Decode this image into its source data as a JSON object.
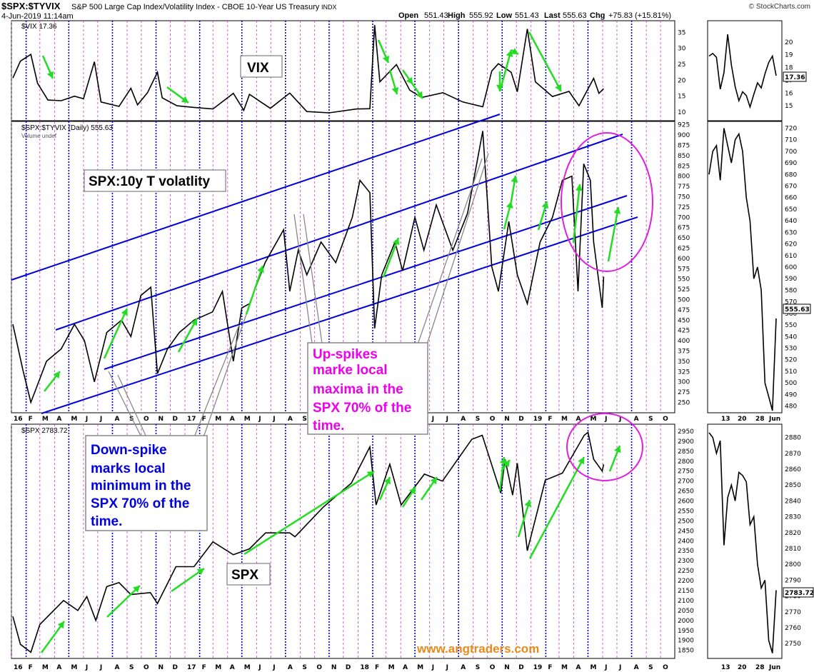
{
  "header": {
    "symbol": "$SPX:$TYVIX",
    "description": "S&P 500 Large Cap Index/Volatility Index - CBOE 10-Year US Treasury",
    "exchange": "INDX",
    "date": "4-Jun-2019 11:14am",
    "open_label": "Open",
    "open": "551.43",
    "high_label": "High",
    "high": "555.92",
    "low_label": "Low",
    "low": "551.43",
    "last_label": "Last",
    "last": "555.63",
    "chg_label": "Chg",
    "chg": "+75.83 (+15.81%)",
    "watermark": "© StockCharts.com"
  },
  "panels": {
    "vix": {
      "legend": "$VIX 17.36",
      "last_value": "17.36"
    },
    "ratio": {
      "legend": "$SPX:$TYVIX (Daily) 555.63",
      "volume_legend": "Volume undef",
      "last_value": "555.63"
    },
    "spx": {
      "legend": "$SPX 2783.72",
      "last_value": "2783.72"
    }
  },
  "annotations": {
    "vix_label": "VIX",
    "ratio_label": "SPX:10y T volatlity",
    "spx_label": "SPX",
    "up_spikes": [
      "Up-spikes",
      "marke local",
      "maxima in the",
      "SPX 70% of the",
      "time."
    ],
    "down_spike": [
      "Down-spike",
      "marks local",
      "minimum in the",
      "SPX 70% of the",
      "time."
    ],
    "site": "www.angtraders.com"
  },
  "colors": {
    "price": "#000000",
    "channel": "#0000dd",
    "arrow": "#22dd22",
    "magenta": "#e020e0",
    "grid_blue": "#0000ee",
    "grid_magenta": "#cc33cc",
    "up_text": "#ee00ee",
    "down_text": "#0000dd",
    "site": "#e88a1a"
  },
  "chart_data": [
    {
      "type": "line",
      "name_hint": "main-vix",
      "xlabel": "",
      "ylabel": "",
      "ylim": [
        8,
        38
      ],
      "y_ticks": [
        10,
        15,
        20,
        25,
        30,
        35
      ],
      "x_ticks": [
        "16",
        "F",
        "M",
        "A",
        "M",
        "J",
        "J",
        "A",
        "S",
        "O",
        "N",
        "D",
        "17",
        "F",
        "M",
        "A",
        "M",
        "J",
        "J",
        "A",
        "S",
        "O",
        "N",
        "D",
        "18",
        "F",
        "M",
        "A",
        "M",
        "J",
        "J",
        "A",
        "S",
        "O",
        "N",
        "D",
        "19",
        "F",
        "M",
        "A",
        "M",
        "J",
        "J",
        "A",
        "S",
        "O"
      ],
      "x_range": [
        "2016-01-01",
        "2019-10-31"
      ],
      "series": [
        {
          "values": [
            [
              "2016-01-04",
              20.7
            ],
            [
              "2016-01-20",
              26.0
            ],
            [
              "2016-02-11",
              28.1
            ],
            [
              "2016-02-25",
              19.1
            ],
            [
              "2016-03-18",
              13.8
            ],
            [
              "2016-04-15",
              13.6
            ],
            [
              "2016-05-13",
              15.0
            ],
            [
              "2016-06-01",
              14.2
            ],
            [
              "2016-06-24",
              25.8
            ],
            [
              "2016-07-08",
              13.2
            ],
            [
              "2016-08-15",
              11.8
            ],
            [
              "2016-09-09",
              17.5
            ],
            [
              "2016-09-23",
              12.3
            ],
            [
              "2016-10-14",
              16.1
            ],
            [
              "2016-11-04",
              22.5
            ],
            [
              "2016-11-14",
              14.5
            ],
            [
              "2016-12-15",
              12.0
            ],
            [
              "2017-01-20",
              11.5
            ],
            [
              "2017-03-01",
              11.0
            ],
            [
              "2017-04-13",
              15.9
            ],
            [
              "2017-05-05",
              10.6
            ],
            [
              "2017-05-17",
              15.6
            ],
            [
              "2017-06-30",
              11.2
            ],
            [
              "2017-08-10",
              16.0
            ],
            [
              "2017-09-15",
              10.2
            ],
            [
              "2017-11-01",
              9.8
            ],
            [
              "2017-12-29",
              11.0
            ],
            [
              "2018-01-26",
              11.1
            ],
            [
              "2018-02-05",
              37.3
            ],
            [
              "2018-02-16",
              19.5
            ],
            [
              "2018-03-23",
              24.9
            ],
            [
              "2018-04-20",
              16.9
            ],
            [
              "2018-05-15",
              14.6
            ],
            [
              "2018-06-29",
              16.1
            ],
            [
              "2018-08-10",
              13.2
            ],
            [
              "2018-09-21",
              11.7
            ],
            [
              "2018-10-10",
              22.9
            ],
            [
              "2018-10-24",
              25.2
            ],
            [
              "2018-11-20",
              22.5
            ],
            [
              "2018-12-03",
              16.4
            ],
            [
              "2018-12-24",
              36.1
            ],
            [
              "2019-01-10",
              19.5
            ],
            [
              "2019-02-15",
              14.9
            ],
            [
              "2019-03-22",
              16.5
            ],
            [
              "2019-04-12",
              12.0
            ],
            [
              "2019-05-13",
              20.6
            ],
            [
              "2019-05-24",
              15.9
            ],
            [
              "2019-06-03",
              17.36
            ]
          ]
        }
      ]
    },
    {
      "type": "line",
      "name_hint": "main-ratio",
      "xlabel": "",
      "ylabel": "",
      "ylim": [
        230,
        928
      ],
      "y_ticks": [
        250,
        275,
        300,
        325,
        350,
        375,
        400,
        425,
        450,
        475,
        500,
        525,
        550,
        575,
        600,
        625,
        650,
        675,
        700,
        725,
        750,
        775,
        800,
        825,
        850,
        875,
        900,
        925
      ],
      "series": [
        {
          "values": [
            [
              "2016-01-04",
              440
            ],
            [
              "2016-01-25",
              330
            ],
            [
              "2016-02-11",
              250
            ],
            [
              "2016-03-15",
              350
            ],
            [
              "2016-04-15",
              380
            ],
            [
              "2016-05-13",
              440
            ],
            [
              "2016-06-03",
              400
            ],
            [
              "2016-06-24",
              300
            ],
            [
              "2016-07-20",
              420
            ],
            [
              "2016-08-20",
              450
            ],
            [
              "2016-09-09",
              410
            ],
            [
              "2016-09-30",
              510
            ],
            [
              "2016-10-21",
              530
            ],
            [
              "2016-11-04",
              320
            ],
            [
              "2016-11-25",
              380
            ],
            [
              "2016-12-20",
              420
            ],
            [
              "2017-01-20",
              450
            ],
            [
              "2017-02-28",
              470
            ],
            [
              "2017-03-21",
              520
            ],
            [
              "2017-04-13",
              350
            ],
            [
              "2017-05-01",
              480
            ],
            [
              "2017-05-17",
              490
            ],
            [
              "2017-06-19",
              590
            ],
            [
              "2017-07-28",
              670
            ],
            [
              "2017-08-10",
              520
            ],
            [
              "2017-08-28",
              620
            ],
            [
              "2017-09-15",
              560
            ],
            [
              "2017-10-15",
              640
            ],
            [
              "2017-11-15",
              590
            ],
            [
              "2017-12-20",
              700
            ],
            [
              "2018-01-05",
              790
            ],
            [
              "2018-01-26",
              760
            ],
            [
              "2018-02-05",
              430
            ],
            [
              "2018-02-20",
              560
            ],
            [
              "2018-03-20",
              640
            ],
            [
              "2018-04-05",
              570
            ],
            [
              "2018-05-01",
              700
            ],
            [
              "2018-05-20",
              620
            ],
            [
              "2018-06-15",
              730
            ],
            [
              "2018-07-20",
              620
            ],
            [
              "2018-08-20",
              710
            ],
            [
              "2018-09-21",
              910
            ],
            [
              "2018-10-10",
              580
            ],
            [
              "2018-10-24",
              520
            ],
            [
              "2018-11-15",
              690
            ],
            [
              "2018-12-03",
              560
            ],
            [
              "2018-12-24",
              490
            ],
            [
              "2019-01-20",
              640
            ],
            [
              "2019-02-15",
              700
            ],
            [
              "2019-03-08",
              790
            ],
            [
              "2019-03-28",
              800
            ],
            [
              "2019-04-10",
              520
            ],
            [
              "2019-04-22",
              830
            ],
            [
              "2019-05-06",
              790
            ],
            [
              "2019-05-13",
              640
            ],
            [
              "2019-05-31",
              480
            ],
            [
              "2019-06-03",
              555.63
            ]
          ]
        }
      ]
    },
    {
      "type": "line",
      "name_hint": "main-spx",
      "xlabel": "",
      "ylabel": "",
      "ylim": [
        1820,
        2975
      ],
      "y_ticks": [
        1850,
        1900,
        1950,
        2000,
        2050,
        2100,
        2150,
        2200,
        2250,
        2300,
        2350,
        2400,
        2450,
        2500,
        2550,
        2600,
        2650,
        2700,
        2750,
        2800,
        2850,
        2900,
        2950
      ],
      "series": [
        {
          "values": [
            [
              "2016-01-04",
              2020
            ],
            [
              "2016-01-20",
              1880
            ],
            [
              "2016-02-11",
              1840
            ],
            [
              "2016-03-01",
              1980
            ],
            [
              "2016-04-20",
              2100
            ],
            [
              "2016-05-20",
              2050
            ],
            [
              "2016-06-08",
              2120
            ],
            [
              "2016-06-27",
              2000
            ],
            [
              "2016-07-20",
              2170
            ],
            [
              "2016-08-15",
              2190
            ],
            [
              "2016-09-09",
              2130
            ],
            [
              "2016-10-20",
              2140
            ],
            [
              "2016-11-04",
              2085
            ],
            [
              "2016-12-13",
              2270
            ],
            [
              "2017-01-20",
              2270
            ],
            [
              "2017-03-01",
              2395
            ],
            [
              "2017-04-13",
              2330
            ],
            [
              "2017-05-17",
              2360
            ],
            [
              "2017-06-20",
              2440
            ],
            [
              "2017-08-10",
              2440
            ],
            [
              "2017-08-21",
              2420
            ],
            [
              "2017-10-20",
              2570
            ],
            [
              "2017-12-18",
              2690
            ],
            [
              "2018-01-26",
              2872
            ],
            [
              "2018-02-08",
              2580
            ],
            [
              "2018-03-09",
              2785
            ],
            [
              "2018-04-02",
              2580
            ],
            [
              "2018-05-21",
              2735
            ],
            [
              "2018-06-28",
              2700
            ],
            [
              "2018-08-29",
              2910
            ],
            [
              "2018-09-20",
              2930
            ],
            [
              "2018-10-29",
              2640
            ],
            [
              "2018-11-07",
              2810
            ],
            [
              "2018-11-23",
              2630
            ],
            [
              "2018-12-03",
              2790
            ],
            [
              "2018-12-24",
              2350
            ],
            [
              "2019-01-31",
              2705
            ],
            [
              "2019-03-08",
              2740
            ],
            [
              "2019-04-23",
              2930
            ],
            [
              "2019-05-01",
              2945
            ],
            [
              "2019-05-13",
              2810
            ],
            [
              "2019-05-31",
              2750
            ],
            [
              "2019-06-03",
              2783.72
            ]
          ]
        }
      ]
    },
    {
      "type": "line",
      "name_hint": "inset-vix",
      "ylim": [
        14,
        21.5
      ],
      "y_ticks": [
        15,
        16,
        17,
        18,
        19,
        20
      ],
      "x_ticks": [
        "13",
        "20",
        "28",
        "Jun"
      ],
      "series": [
        {
          "values": [
            [
              0,
              18.9
            ],
            [
              1,
              19.1
            ],
            [
              2,
              18.8
            ],
            [
              3,
              16.3
            ],
            [
              4,
              17.6
            ],
            [
              5,
              20.6
            ],
            [
              6,
              18.2
            ],
            [
              7,
              16.5
            ],
            [
              8,
              15.4
            ],
            [
              9,
              16.1
            ],
            [
              10,
              15.8
            ],
            [
              11,
              14.9
            ],
            [
              12,
              15.9
            ],
            [
              13,
              16.8
            ],
            [
              14,
              16.4
            ],
            [
              15,
              17.5
            ],
            [
              16,
              18.4
            ],
            [
              17,
              18.9
            ],
            [
              18,
              17.36
            ]
          ]
        }
      ]
    },
    {
      "type": "line",
      "name_hint": "inset-ratio",
      "ylim": [
        476,
        724
      ],
      "y_ticks": [
        480,
        490,
        500,
        510,
        520,
        530,
        540,
        550,
        560,
        570,
        580,
        590,
        600,
        610,
        620,
        630,
        640,
        650,
        660,
        670,
        680,
        690,
        700,
        710,
        720
      ],
      "series": [
        {
          "values": [
            [
              0,
              680
            ],
            [
              1,
              700
            ],
            [
              2,
              705
            ],
            [
              3,
              675
            ],
            [
              4,
              720
            ],
            [
              5,
              705
            ],
            [
              6,
              690
            ],
            [
              7,
              710
            ],
            [
              8,
              715
            ],
            [
              9,
              700
            ],
            [
              10,
              660
            ],
            [
              11,
              640
            ],
            [
              12,
              590
            ],
            [
              13,
              600
            ],
            [
              14,
              580
            ],
            [
              15,
              500
            ],
            [
              16,
              488
            ],
            [
              17,
              476
            ],
            [
              18,
              555.63
            ]
          ]
        }
      ]
    },
    {
      "type": "line",
      "name_hint": "inset-spx",
      "ylim": [
        2742,
        2887
      ],
      "y_ticks": [
        2750,
        2760,
        2770,
        2780,
        2790,
        2800,
        2810,
        2820,
        2830,
        2840,
        2850,
        2860,
        2870,
        2880
      ],
      "series": [
        {
          "values": [
            [
              0,
              2883
            ],
            [
              1,
              2880
            ],
            [
              2,
              2870
            ],
            [
              3,
              2878
            ],
            [
              4,
              2812
            ],
            [
              5,
              2842
            ],
            [
              6,
              2850
            ],
            [
              7,
              2840
            ],
            [
              8,
              2858
            ],
            [
              9,
              2856
            ],
            [
              10,
              2852
            ],
            [
              11,
              2825
            ],
            [
              12,
              2830
            ],
            [
              13,
              2800
            ],
            [
              14,
              2785
            ],
            [
              15,
              2790
            ],
            [
              16,
              2752
            ],
            [
              17,
              2744
            ],
            [
              18,
              2783.72
            ]
          ]
        }
      ]
    }
  ]
}
